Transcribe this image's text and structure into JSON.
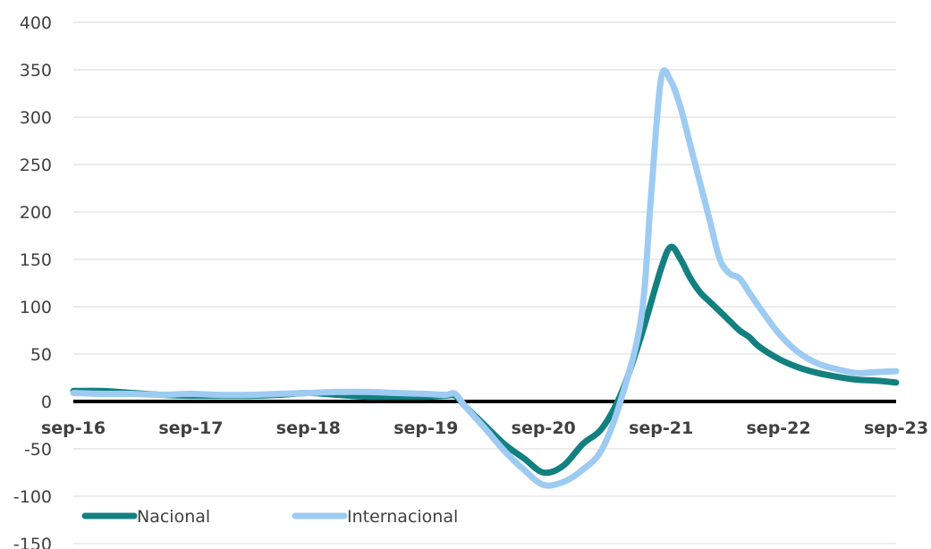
{
  "chart_data": {
    "type": "line",
    "title": "",
    "xlabel": "",
    "ylabel": "",
    "ylim": [
      -150,
      400
    ],
    "yticks": [
      400,
      350,
      300,
      250,
      200,
      150,
      100,
      50,
      0,
      -50,
      -100,
      -150
    ],
    "x_tick_labels": [
      "sep-16",
      "sep-17",
      "sep-18",
      "sep-19",
      "sep-20",
      "sep-21",
      "sep-22",
      "sep-23"
    ],
    "x_tick_positions": [
      0,
      12,
      24,
      36,
      48,
      60,
      72,
      84
    ],
    "grid": true,
    "legend_position": "bottom-left",
    "x_unit": "months since sep-16",
    "series": [
      {
        "name": "Nacional",
        "color": "#138080",
        "x": [
          0,
          3,
          6,
          9,
          12,
          15,
          18,
          21,
          24,
          27,
          30,
          33,
          36,
          38,
          39,
          40,
          42,
          44,
          46,
          48,
          50,
          52,
          54,
          56,
          58,
          60,
          61,
          62,
          63,
          64,
          65,
          66,
          67,
          68,
          69,
          70,
          72,
          74,
          76,
          78,
          80,
          82,
          84
        ],
        "values": [
          11,
          11,
          9,
          7,
          6,
          6,
          6,
          7,
          9,
          7,
          5,
          5,
          5,
          6,
          6,
          -5,
          -25,
          -45,
          -60,
          -75,
          -68,
          -45,
          -28,
          10,
          70,
          140,
          163,
          150,
          130,
          115,
          105,
          95,
          85,
          75,
          68,
          58,
          45,
          36,
          30,
          26,
          23,
          22,
          20
        ]
      },
      {
        "name": "Internacional",
        "color": "#9dcbf2",
        "x": [
          0,
          3,
          6,
          9,
          12,
          15,
          18,
          21,
          24,
          27,
          30,
          33,
          36,
          38,
          39,
          40,
          42,
          44,
          46,
          48,
          50,
          52,
          54,
          56,
          58,
          59,
          60,
          61,
          62,
          63,
          64,
          65,
          66,
          67,
          68,
          69,
          70,
          72,
          74,
          76,
          78,
          80,
          82,
          84
        ],
        "values": [
          9,
          8,
          8,
          7,
          8,
          7,
          7,
          8,
          9,
          10,
          10,
          9,
          8,
          7,
          8,
          -5,
          -28,
          -52,
          -72,
          -88,
          -85,
          -72,
          -50,
          5,
          90,
          220,
          340,
          338,
          310,
          270,
          230,
          190,
          150,
          135,
          130,
          115,
          100,
          72,
          52,
          40,
          34,
          30,
          31,
          32
        ]
      }
    ]
  }
}
